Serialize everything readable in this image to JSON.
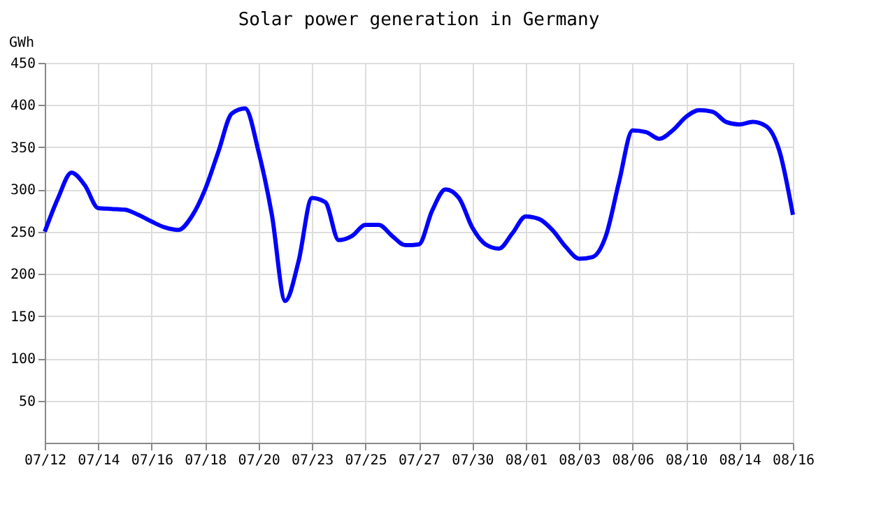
{
  "chart_data": {
    "type": "line",
    "title": "Solar power generation in Germany",
    "ylabel": "GWh",
    "categories": [
      "07/12",
      null,
      null,
      null,
      "07/14",
      null,
      null,
      null,
      "07/16",
      null,
      null,
      null,
      "07/18",
      null,
      null,
      null,
      "07/20",
      null,
      null,
      null,
      "07/23",
      null,
      null,
      null,
      "07/25",
      null,
      null,
      null,
      "07/27",
      null,
      null,
      null,
      "07/30",
      null,
      null,
      null,
      "08/01",
      null,
      null,
      null,
      "08/03",
      null,
      null,
      null,
      "08/06",
      null,
      null,
      null,
      "08/10",
      null,
      null,
      null,
      "08/14",
      null,
      null,
      null,
      "08/16"
    ],
    "series": [
      {
        "color": "#0000ff",
        "values": [
          250,
          290,
          320,
          305,
          278,
          277,
          276,
          270,
          262,
          255,
          252,
          268,
          300,
          345,
          390,
          396,
          345,
          270,
          168,
          215,
          290,
          285,
          240,
          245,
          258,
          258,
          245,
          234,
          235,
          275,
          300,
          290,
          255,
          235,
          230,
          248,
          268,
          265,
          252,
          232,
          218,
          220,
          245,
          310,
          370,
          368,
          360,
          370,
          386,
          394,
          392,
          380,
          377,
          380,
          375,
          345,
          270
        ]
      }
    ],
    "ylim": [
      0,
      450
    ],
    "yticks": [
      50,
      100,
      150,
      200,
      250,
      300,
      350,
      400,
      450
    ],
    "grid": true,
    "marker": "none",
    "line_style": "solid"
  }
}
